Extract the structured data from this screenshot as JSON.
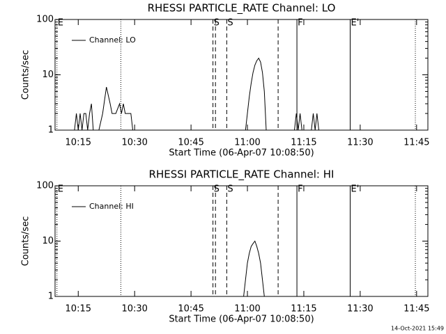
{
  "chart_data": [
    {
      "type": "line",
      "title": "RHESSI PARTICLE_RATE Channel: LO",
      "xlabel": "Start Time (06-Apr-07 10:08:50)",
      "ylabel": "Counts/sec",
      "x": [
        "10:14:00",
        "10:14:30",
        "10:15:00",
        "10:15:30",
        "10:16:00",
        "10:16:30",
        "10:17:00",
        "10:17:30",
        "10:18:00",
        "10:18:30",
        "10:19:00",
        "10:20:00",
        "10:20:30",
        "10:21:30",
        "10:22:30",
        "10:23:30",
        "10:24:00",
        "10:25:00",
        "10:26:00",
        "10:26:30",
        "10:27:00",
        "10:27:30",
        "10:29:00",
        "10:29:30",
        "10:40:00",
        "10:59:30",
        "11:00:00",
        "11:00:30",
        "11:01:00",
        "11:01:30",
        "11:02:00",
        "11:02:30",
        "11:03:00",
        "11:03:30",
        "11:04:00",
        "11:04:30",
        "11:05:00",
        "11:08:00",
        "11:12:30",
        "11:13:00",
        "11:13:30",
        "11:14:00",
        "11:14:30",
        "11:17:00",
        "11:17:30",
        "11:18:00",
        "11:18:30",
        "11:19:00"
      ],
      "series": [
        {
          "name": "Channel: LO",
          "color": "#000000",
          "values": [
            1,
            2,
            1,
            2,
            1,
            2,
            2,
            1,
            2,
            3,
            1,
            null,
            1,
            2,
            6,
            3,
            2,
            2,
            3,
            2,
            3,
            2,
            2,
            1,
            null,
            1,
            2,
            4,
            7,
            11,
            15,
            18,
            20,
            17,
            11,
            5,
            1,
            null,
            1,
            2,
            1,
            2,
            1,
            1,
            2,
            1,
            2,
            1
          ]
        }
      ],
      "xlim": [
        "10:08:50",
        "11:48:00"
      ],
      "xticks": [
        {
          "value": "10:15:00",
          "label": "10:15"
        },
        {
          "value": "10:30:00",
          "label": "10:30"
        },
        {
          "value": "10:45:00",
          "label": "10:45"
        },
        {
          "value": "11:00:00",
          "label": "11:00"
        },
        {
          "value": "11:15:00",
          "label": "11:15"
        },
        {
          "value": "11:30:00",
          "label": "11:30"
        },
        {
          "value": "11:45:00",
          "label": "11:45"
        }
      ],
      "ylim": [
        1,
        100
      ],
      "yticks": [
        1,
        10,
        100
      ],
      "log_y": true,
      "legend": "upper left",
      "markers": [
        {
          "x": "10:09:20",
          "label": "E",
          "style": "dotted"
        },
        {
          "x": "10:26:20",
          "style": "dotted"
        },
        {
          "x": "10:50:50",
          "label": "S",
          "style": "dashed"
        },
        {
          "x": "10:51:30",
          "style": "dashed"
        },
        {
          "x": "10:54:30",
          "label": "S",
          "style": "dashed"
        },
        {
          "x": "11:08:10",
          "style": "dashed"
        },
        {
          "x": "11:13:10",
          "label": "F",
          "style": "solid"
        },
        {
          "x": "11:27:20",
          "label": "E'",
          "style": "solid"
        },
        {
          "x": "11:44:40",
          "style": "dotted"
        }
      ]
    },
    {
      "type": "line",
      "title": "RHESSI PARTICLE_RATE Channel: HI",
      "xlabel": "Start Time (06-Apr-07 10:08:50)",
      "ylabel": "Counts/sec",
      "x": [
        "10:59:00",
        "10:59:30",
        "11:00:00",
        "11:00:30",
        "11:01:00",
        "11:01:30",
        "11:02:00",
        "11:02:30",
        "11:03:00",
        "11:03:30",
        "11:04:00",
        "11:04:30"
      ],
      "series": [
        {
          "name": "Channel: HI",
          "color": "#000000",
          "values": [
            1,
            2,
            4,
            6,
            8,
            9,
            10,
            8,
            6,
            4,
            2,
            1
          ]
        }
      ],
      "xlim": [
        "10:08:50",
        "11:48:00"
      ],
      "xticks": [
        {
          "value": "10:15:00",
          "label": "10:15"
        },
        {
          "value": "10:30:00",
          "label": "10:30"
        },
        {
          "value": "10:45:00",
          "label": "10:45"
        },
        {
          "value": "11:00:00",
          "label": "11:00"
        },
        {
          "value": "11:15:00",
          "label": "11:15"
        },
        {
          "value": "11:30:00",
          "label": "11:30"
        },
        {
          "value": "11:45:00",
          "label": "11:45"
        }
      ],
      "ylim": [
        1,
        100
      ],
      "yticks": [
        1,
        10,
        100
      ],
      "log_y": true,
      "legend": "upper left",
      "markers": [
        {
          "x": "10:09:20",
          "label": "E",
          "style": "dotted"
        },
        {
          "x": "10:26:20",
          "style": "dotted"
        },
        {
          "x": "10:50:50",
          "label": "S",
          "style": "dashed"
        },
        {
          "x": "10:51:30",
          "style": "dashed"
        },
        {
          "x": "10:54:30",
          "label": "S",
          "style": "dashed"
        },
        {
          "x": "11:08:10",
          "style": "dashed"
        },
        {
          "x": "11:13:10",
          "label": "F",
          "style": "solid"
        },
        {
          "x": "11:27:20",
          "label": "E'",
          "style": "solid"
        },
        {
          "x": "11:44:40",
          "style": "dotted"
        }
      ]
    }
  ],
  "footer": "14-Oct-2021 15:49"
}
